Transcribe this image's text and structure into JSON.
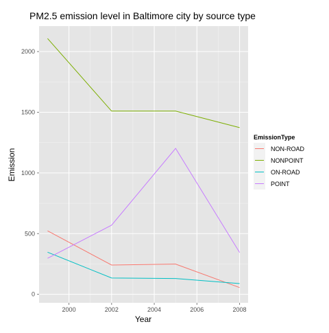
{
  "chart_data": {
    "type": "line",
    "title": "PM2.5 emission level in Baltimore city by source type",
    "xlabel": "Year",
    "ylabel": "Emission",
    "x": [
      1999,
      2002,
      2005,
      2008
    ],
    "xlim": [
      1998.6,
      2008.4
    ],
    "ylim": [
      -70,
      2210
    ],
    "xticks": [
      2000,
      2002,
      2004,
      2006,
      2008
    ],
    "yticks": [
      0,
      500,
      1000,
      1500,
      2000
    ],
    "grid": true,
    "legend": {
      "title": "EmissionType",
      "placement": "right"
    },
    "series": [
      {
        "name": "NON-ROAD",
        "color": "#F8766D",
        "values": [
          522.9,
          241.0,
          248.9,
          55.8
        ]
      },
      {
        "name": "NONPOINT",
        "color": "#7CAE00",
        "values": [
          2107.6,
          1509.5,
          1509.5,
          1373.2
        ]
      },
      {
        "name": "ON-ROAD",
        "color": "#00BFC4",
        "values": [
          346.8,
          134.3,
          130.4,
          88.3
        ]
      },
      {
        "name": "POINT",
        "color": "#C77CFF",
        "values": [
          296.8,
          569.3,
          1202.5,
          344.98
        ]
      }
    ]
  }
}
